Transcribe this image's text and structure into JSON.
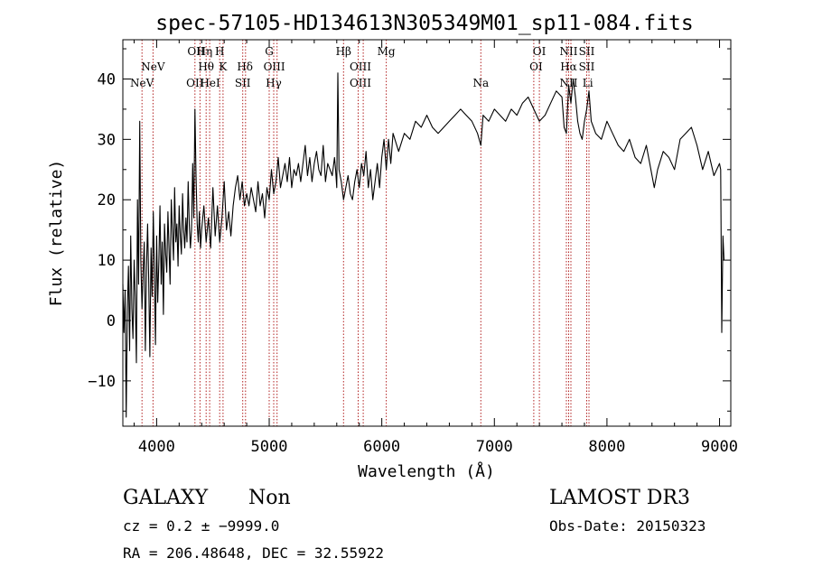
{
  "chart_data": {
    "type": "line",
    "title": "spec-57105-HD134613N305349M01_sp11-084.fits",
    "xlabel": "Wavelength (Å)",
    "ylabel": "Flux (relative)",
    "xlim": [
      3700,
      9100
    ],
    "ylim": [
      -17.5,
      46.5
    ],
    "xticks": [
      4000,
      5000,
      6000,
      7000,
      8000,
      9000
    ],
    "yticks": [
      -10,
      0,
      10,
      20,
      30,
      40
    ],
    "grid": false,
    "series": [
      {
        "name": "spectrum",
        "x": [
          3700,
          3710,
          3720,
          3730,
          3740,
          3750,
          3760,
          3770,
          3780,
          3790,
          3800,
          3810,
          3820,
          3830,
          3840,
          3850,
          3860,
          3870,
          3880,
          3890,
          3900,
          3910,
          3920,
          3930,
          3940,
          3950,
          3960,
          3970,
          3980,
          3990,
          4000,
          4010,
          4020,
          4030,
          4040,
          4050,
          4060,
          4070,
          4080,
          4090,
          4100,
          4110,
          4120,
          4130,
          4140,
          4150,
          4160,
          4170,
          4180,
          4190,
          4200,
          4210,
          4220,
          4230,
          4240,
          4250,
          4260,
          4270,
          4280,
          4290,
          4300,
          4310,
          4320,
          4330,
          4340,
          4350,
          4360,
          4370,
          4380,
          4390,
          4400,
          4420,
          4440,
          4460,
          4480,
          4500,
          4520,
          4540,
          4560,
          4580,
          4600,
          4620,
          4640,
          4660,
          4680,
          4700,
          4720,
          4740,
          4760,
          4780,
          4800,
          4820,
          4840,
          4860,
          4880,
          4900,
          4920,
          4940,
          4960,
          4980,
          5000,
          5020,
          5040,
          5060,
          5080,
          5100,
          5120,
          5140,
          5160,
          5180,
          5200,
          5220,
          5240,
          5260,
          5280,
          5300,
          5320,
          5340,
          5360,
          5380,
          5400,
          5420,
          5440,
          5460,
          5480,
          5500,
          5520,
          5540,
          5560,
          5580,
          5590,
          5600,
          5610,
          5620,
          5640,
          5660,
          5680,
          5700,
          5720,
          5740,
          5760,
          5780,
          5800,
          5820,
          5840,
          5860,
          5880,
          5900,
          5920,
          5940,
          5960,
          5980,
          6000,
          6020,
          6040,
          6060,
          6080,
          6100,
          6150,
          6200,
          6250,
          6300,
          6350,
          6400,
          6450,
          6500,
          6550,
          6600,
          6650,
          6700,
          6750,
          6800,
          6850,
          6880,
          6900,
          6950,
          7000,
          7050,
          7100,
          7150,
          7200,
          7250,
          7300,
          7350,
          7400,
          7450,
          7500,
          7550,
          7600,
          7620,
          7640,
          7660,
          7680,
          7700,
          7720,
          7740,
          7760,
          7780,
          7800,
          7820,
          7840,
          7860,
          7880,
          7900,
          7950,
          8000,
          8050,
          8100,
          8150,
          8200,
          8250,
          8300,
          8350,
          8380,
          8400,
          8420,
          8450,
          8500,
          8550,
          8600,
          8650,
          8700,
          8750,
          8800,
          8850,
          8900,
          8950,
          9000,
          9010,
          9020,
          9030,
          9040
        ],
        "values": [
          6,
          -2,
          5,
          -16,
          2,
          9,
          -5,
          14,
          2,
          -3,
          10,
          4,
          -7,
          20,
          6,
          33,
          10,
          2,
          8,
          13,
          -5,
          9,
          16,
          6,
          -6,
          12,
          4,
          18,
          8,
          -4,
          14,
          3,
          10,
          19,
          6,
          13,
          1,
          16,
          11,
          8,
          18,
          12,
          6,
          20,
          15,
          10,
          22,
          13,
          16,
          9,
          19,
          14,
          11,
          21,
          15,
          12,
          17,
          13,
          23,
          16,
          12,
          15,
          26,
          17,
          35,
          24,
          16,
          13,
          18,
          12,
          15,
          19,
          13,
          17,
          12,
          22,
          14,
          19,
          13,
          17,
          23,
          15,
          18,
          14,
          19,
          22,
          24,
          20,
          23,
          19,
          21,
          19,
          22,
          20,
          18,
          23,
          19,
          21,
          17,
          22,
          20,
          25,
          21,
          23,
          27,
          22,
          24,
          26,
          23,
          27,
          22,
          25,
          24,
          26,
          23,
          26,
          29,
          24,
          27,
          23,
          26,
          28,
          25,
          24,
          29,
          23,
          26,
          25,
          24,
          27,
          25,
          22,
          41,
          25,
          23,
          20,
          22,
          24,
          21,
          20,
          23,
          25,
          22,
          26,
          24,
          28,
          22,
          25,
          20,
          23,
          26,
          22,
          27,
          30,
          25,
          30,
          26,
          31,
          28,
          31,
          30,
          33,
          32,
          34,
          32,
          31,
          32,
          33,
          34,
          35,
          34,
          33,
          31,
          29,
          34,
          33,
          35,
          34,
          33,
          35,
          34,
          36,
          37,
          35,
          33,
          34,
          36,
          38,
          37,
          32,
          31,
          39,
          36,
          40,
          37,
          33,
          31,
          30,
          33,
          35,
          38,
          33,
          32,
          31,
          30,
          33,
          31,
          29,
          28,
          30,
          27,
          26,
          29,
          26,
          24,
          22,
          25,
          28,
          27,
          25,
          30,
          31,
          32,
          29,
          25,
          28,
          24,
          26,
          25,
          -2,
          14,
          10
        ]
      }
    ],
    "lines": [
      {
        "label": "NeV",
        "x": 3870
      },
      {
        "label": "NeV",
        "x": 3968
      },
      {
        "label": "OII",
        "x": 4340
      },
      {
        "label": "Hη",
        "x": 4385
      },
      {
        "label": "Hθ",
        "x": 4440
      },
      {
        "label": "HeI",
        "x": 4471
      },
      {
        "label": "H",
        "x": 4560
      },
      {
        "label": "K",
        "x": 4590
      },
      {
        "label": "SII",
        "x": 4765
      },
      {
        "label": "Hδ",
        "x": 4790
      },
      {
        "label": "G",
        "x": 5000
      },
      {
        "label": "OIII",
        "x": 5040
      },
      {
        "label": "Hγ",
        "x": 5070
      },
      {
        "label": "Hβ",
        "x": 5660
      },
      {
        "label": "OIII",
        "x": 5790
      },
      {
        "label": "OIII",
        "x": 5835
      },
      {
        "label": "Mg",
        "x": 6040
      },
      {
        "label": "Na",
        "x": 6880
      },
      {
        "label": "OI",
        "x": 7350
      },
      {
        "label": "OI",
        "x": 7400
      },
      {
        "label": "NII",
        "x": 7640
      },
      {
        "label": "Hα",
        "x": 7660
      },
      {
        "label": "NII",
        "x": 7680
      },
      {
        "label": "SII",
        "x": 7820
      },
      {
        "label": "SII",
        "x": 7840
      }
    ],
    "line_labels": [
      {
        "text": "NeV",
        "x": 3870,
        "tier": 4
      },
      {
        "text": "NeV",
        "x": 3968,
        "tier": 3
      },
      {
        "text": "OII",
        "x": 4350,
        "tier": 1
      },
      {
        "text": "Hη",
        "x": 4425,
        "tier": 1
      },
      {
        "text": "H",
        "x": 4560,
        "tier": 1
      },
      {
        "text": "Hθ",
        "x": 4440,
        "tier": 3
      },
      {
        "text": "K",
        "x": 4590,
        "tier": 3
      },
      {
        "text": "Hδ",
        "x": 4785,
        "tier": 3
      },
      {
        "text": "OII",
        "x": 4340,
        "tier": 4
      },
      {
        "text": "HeI",
        "x": 4475,
        "tier": 4
      },
      {
        "text": "SII",
        "x": 4765,
        "tier": 4
      },
      {
        "text": "G",
        "x": 5000,
        "tier": 1
      },
      {
        "text": "OIII",
        "x": 5045,
        "tier": 3
      },
      {
        "text": "Hγ",
        "x": 5040,
        "tier": 4
      },
      {
        "text": "Hβ",
        "x": 5660,
        "tier": 1
      },
      {
        "text": "OIII",
        "x": 5810,
        "tier": 3
      },
      {
        "text": "OIII",
        "x": 5810,
        "tier": 4
      },
      {
        "text": "Mg",
        "x": 6040,
        "tier": 1
      },
      {
        "text": "Na",
        "x": 6880,
        "tier": 4
      },
      {
        "text": "OI",
        "x": 7400,
        "tier": 1
      },
      {
        "text": "OI",
        "x": 7370,
        "tier": 3
      },
      {
        "text": "NII",
        "x": 7660,
        "tier": 1
      },
      {
        "text": "SII",
        "x": 7820,
        "tier": 1
      },
      {
        "text": "Hα",
        "x": 7660,
        "tier": 3
      },
      {
        "text": "SII",
        "x": 7820,
        "tier": 3
      },
      {
        "text": "NII",
        "x": 7660,
        "tier": 4
      },
      {
        "text": "Li",
        "x": 7830,
        "tier": 4
      }
    ]
  },
  "info": {
    "classification": "GALAXY",
    "subclass": "Non",
    "survey": "LAMOST DR3",
    "redshift": "cz = 0.2 ± −9999.0",
    "obs_date": "Obs-Date: 20150323",
    "coords": "RA = 206.48648, DEC =  32.55922"
  }
}
